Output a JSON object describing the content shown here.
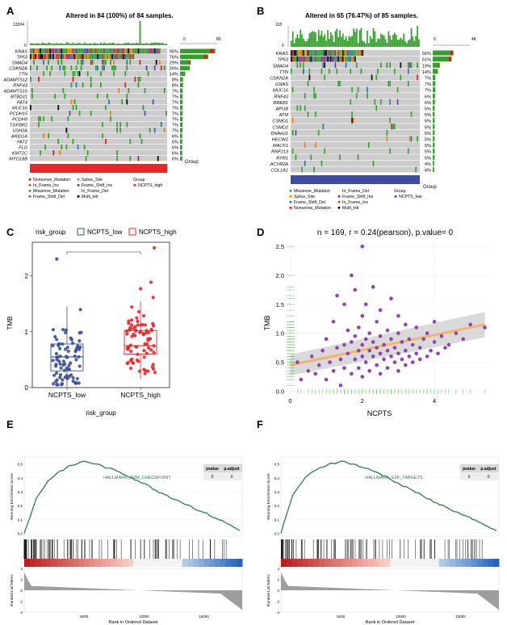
{
  "panels": {
    "A": {
      "letter": "A",
      "title": "Altered in 84 (100%) of 84 samples.",
      "top_axis_max": "13304",
      "top_axis_min": "0",
      "right_axis_min": "0",
      "right_axis_max": "80",
      "group_label": "Group",
      "genes": [
        "KRAS",
        "TP53",
        "SMAD4",
        "CDKN2A",
        "TTN",
        "ADAMTS12",
        "RNF43",
        "ADAMTS16",
        "BTBD11",
        "FAT4",
        "MUC16",
        "PCDH15",
        "PCDH9",
        "TGFBR2",
        "USH2A",
        "ARID1A",
        "FAT2",
        "FLG",
        "KMT2C",
        "MYO18B"
      ],
      "percents": [
        "95%",
        "76%",
        "29%",
        "26%",
        "14%",
        "8%",
        "8%",
        "7%",
        "7%",
        "7%",
        "7%",
        "7%",
        "7%",
        "7%",
        "7%",
        "6%",
        "6%",
        "6%",
        "6%",
        "6%"
      ],
      "legend": [
        "Nonsense_Mutation",
        "In_Frame_Ins",
        "Missense_Mutation",
        "Frame_Shift_Del",
        "Splice_Site",
        "Frame_Shift_Ins",
        "In_Frame_Del",
        "Multi_Hit"
      ],
      "legend_group_title": "Group",
      "legend_group_item": "NCPTS_high",
      "group_color": "#e8262a"
    },
    "B": {
      "letter": "B",
      "title": "Altered in 65 (76.47%) of 85 samples.",
      "top_axis_max": "118",
      "top_axis_min": "0",
      "right_axis_min": "0",
      "right_axis_max": "48",
      "group_label": "Group",
      "genes": [
        "KRAS",
        "TP53",
        "SMAD4",
        "TTN",
        "CDKN2A",
        "GNAS",
        "MUC16",
        "RNF43",
        "RREB1",
        "APOB",
        "ATM",
        "CSMD1",
        "CSMD2",
        "DNAH11",
        "HECW2",
        "MACF1",
        "RNF213",
        "RYR1",
        "ACVR2A",
        "COL1A1"
      ],
      "percents": [
        "56%",
        "51%",
        "19%",
        "14%",
        "7%",
        "7%",
        "7%",
        "6%",
        "6%",
        "5%",
        "5%",
        "5%",
        "5%",
        "5%",
        "5%",
        "5%",
        "5%",
        "5%",
        "4%",
        "4%"
      ],
      "legend": [
        "Missense_Mutation",
        "Splice_Site",
        "Frame_Shift_Del",
        "Nonsense_Mutation",
        "In_Frame_Del",
        "Frame_Shift_Ins",
        "In_Frame_Ins",
        "Multi_Hit"
      ],
      "legend_group_title": "Group",
      "legend_group_item": "NCPTS_low",
      "group_color": "#3f4ea3"
    },
    "C": {
      "letter": "C",
      "legend_title": "risk_group",
      "legend_items": [
        "NCPTS_low",
        "NCPTS_high"
      ],
      "sig": "***",
      "xlabel": "risk_group",
      "ylabel": "TMB",
      "yticks": [
        "0",
        "1",
        "2"
      ]
    },
    "D": {
      "letter": "D",
      "title": "n = 169, r = 0.24(pearson), p.value= 0",
      "xlabel": "NCPTS",
      "ylabel": "TMB",
      "xticks": [
        "0",
        "2",
        "4"
      ],
      "yticks": [
        "0.0",
        "0.5",
        "1.0",
        "1.5",
        "2.0",
        "2.5"
      ]
    },
    "E": {
      "letter": "E",
      "term": "HALLMARK_G2M_CHECKPOINT",
      "pvalue_header": "pvalue",
      "padj_header": "p.adjust",
      "pvalue": "0",
      "padj": "0",
      "ylabel_top": "Running Enrichment Score",
      "ylabel_bottom": "Ranked List Metric",
      "xlabel": "Rank in Ordered Dataset",
      "xticks": [
        "5000",
        "10000",
        "15000"
      ],
      "yticks_top": [
        "0.0",
        "0.1",
        "0.2",
        "0.3",
        "0.4",
        "0.5"
      ],
      "yticks_bottom": [
        "4",
        "2",
        "0",
        "-2",
        "-4"
      ]
    },
    "F": {
      "letter": "F",
      "term": "HALLMARK_E2F_TARGETS",
      "pvalue_header": "pvalue",
      "padj_header": "p.adjust",
      "pvalue": "0",
      "padj": "0",
      "ylabel_top": "Running Enrichment Score",
      "ylabel_bottom": "Ranked List Metric",
      "xlabel": "Rank in Ordered Dataset",
      "xticks": [
        "5000",
        "10000",
        "15000"
      ],
      "yticks_top": [
        "0.0",
        "0.1",
        "0.2",
        "0.3",
        "0.4",
        "0.5"
      ],
      "yticks_bottom": [
        "4",
        "2",
        "0",
        "-2",
        "-4"
      ]
    }
  },
  "colors": {
    "missense": "#33a02c",
    "nonsense": "#e31a1c",
    "frame_shift_del": "#1f78b4",
    "frame_shift_ins": "#6a3d9a",
    "in_frame_del": "#ffff99",
    "in_frame_ins": "#b15928",
    "splice_site": "#ff7f00",
    "multi_hit": "#000000",
    "empty_cell": "#cccccc",
    "low": "#3a4e9a",
    "high": "#e3262a",
    "scatter": "#8e44ad",
    "fit_line": "#f5b26b",
    "gsea_line": "#2e7d4f"
  },
  "chart_data": [
    {
      "type": "heatmap",
      "panel": "A",
      "title": "Altered in 84 (100%) of 84 samples.",
      "rows": [
        "KRAS",
        "TP53",
        "SMAD4",
        "CDKN2A",
        "TTN",
        "ADAMTS12",
        "RNF43",
        "ADAMTS16",
        "BTBD11",
        "FAT4",
        "MUC16",
        "PCDH15",
        "PCDH9",
        "TGFBR2",
        "USH2A",
        "ARID1A",
        "FAT2",
        "FLG",
        "KMT2C",
        "MYO18B"
      ],
      "frequency_percent": [
        95,
        76,
        29,
        26,
        14,
        8,
        8,
        7,
        7,
        7,
        7,
        7,
        7,
        7,
        7,
        6,
        6,
        6,
        6,
        6
      ],
      "n_samples": 84
    },
    {
      "type": "heatmap",
      "panel": "B",
      "title": "Altered in 65 (76.47%) of 85 samples.",
      "rows": [
        "KRAS",
        "TP53",
        "SMAD4",
        "TTN",
        "CDKN2A",
        "GNAS",
        "MUC16",
        "RNF43",
        "RREB1",
        "APOB",
        "ATM",
        "CSMD1",
        "CSMD2",
        "DNAH11",
        "HECW2",
        "MACF1",
        "RNF213",
        "RYR1",
        "ACVR2A",
        "COL1A1"
      ],
      "frequency_percent": [
        56,
        51,
        19,
        14,
        7,
        7,
        7,
        6,
        6,
        5,
        5,
        5,
        5,
        5,
        5,
        5,
        5,
        5,
        4,
        4
      ],
      "n_samples": 85
    },
    {
      "type": "box",
      "panel": "C",
      "categories": [
        "NCPTS_low",
        "NCPTS_high"
      ],
      "series": [
        {
          "name": "NCPTS_low",
          "q1": 0.3,
          "median": 0.55,
          "q3": 0.78,
          "whisker_low": 0.0,
          "whisker_high": 1.45,
          "max": 2.3
        },
        {
          "name": "NCPTS_high",
          "q1": 0.6,
          "median": 0.75,
          "q3": 1.02,
          "whisker_low": 0.15,
          "whisker_high": 1.55,
          "max": 2.5
        }
      ],
      "ylim": [
        0,
        2.6
      ],
      "xlabel": "risk_group",
      "ylabel": "TMB"
    },
    {
      "type": "scatter",
      "panel": "D",
      "title": "n = 169, r = 0.24(pearson), p.value= 0",
      "xlabel": "NCPTS",
      "ylabel": "TMB",
      "xlim": [
        -0.1,
        5.5
      ],
      "ylim": [
        -0.05,
        2.6
      ],
      "fit": {
        "x": [
          0,
          5.4
        ],
        "y": [
          0.45,
          1.15
        ]
      },
      "points": [
        [
          0.2,
          0.5
        ],
        [
          0.3,
          0.2
        ],
        [
          0.5,
          0.35
        ],
        [
          0.6,
          0.6
        ],
        [
          0.7,
          0.3
        ],
        [
          0.8,
          0.45
        ],
        [
          0.9,
          0.7
        ],
        [
          1.0,
          0.2
        ],
        [
          1.0,
          0.9
        ],
        [
          1.1,
          0.5
        ],
        [
          1.2,
          1.2
        ],
        [
          1.2,
          0.35
        ],
        [
          1.3,
          0.75
        ],
        [
          1.3,
          1.65
        ],
        [
          1.4,
          0.55
        ],
        [
          1.4,
          0.1
        ],
        [
          1.5,
          0.8
        ],
        [
          1.5,
          0.4
        ],
        [
          1.5,
          1.5
        ],
        [
          1.6,
          0.65
        ],
        [
          1.6,
          1.05
        ],
        [
          1.7,
          0.3
        ],
        [
          1.7,
          0.85
        ],
        [
          1.7,
          2.0
        ],
        [
          1.8,
          0.55
        ],
        [
          1.8,
          0.95
        ],
        [
          1.8,
          1.75
        ],
        [
          1.9,
          0.4
        ],
        [
          1.9,
          0.7
        ],
        [
          1.9,
          1.1
        ],
        [
          2.0,
          0.25
        ],
        [
          2.0,
          0.6
        ],
        [
          2.0,
          0.8
        ],
        [
          2.0,
          1.3
        ],
        [
          2.0,
          2.5
        ],
        [
          2.1,
          0.5
        ],
        [
          2.1,
          0.9
        ],
        [
          2.1,
          1.5
        ],
        [
          2.2,
          0.35
        ],
        [
          2.2,
          0.7
        ],
        [
          2.2,
          1.0
        ],
        [
          2.3,
          0.6
        ],
        [
          2.3,
          0.85
        ],
        [
          2.3,
          1.8
        ],
        [
          2.4,
          0.45
        ],
        [
          2.4,
          0.75
        ],
        [
          2.4,
          1.2
        ],
        [
          2.5,
          0.3
        ],
        [
          2.5,
          0.65
        ],
        [
          2.5,
          0.95
        ],
        [
          2.5,
          1.4
        ],
        [
          2.6,
          0.55
        ],
        [
          2.6,
          0.8
        ],
        [
          2.7,
          0.4
        ],
        [
          2.7,
          0.7
        ],
        [
          2.7,
          1.05
        ],
        [
          2.8,
          0.6
        ],
        [
          2.8,
          0.9
        ],
        [
          2.8,
          1.6
        ],
        [
          2.9,
          0.5
        ],
        [
          2.9,
          0.75
        ],
        [
          3.0,
          0.35
        ],
        [
          3.0,
          0.65
        ],
        [
          3.0,
          1.0
        ],
        [
          3.0,
          1.3
        ],
        [
          3.1,
          0.55
        ],
        [
          3.1,
          0.85
        ],
        [
          3.2,
          0.45
        ],
        [
          3.2,
          0.7
        ],
        [
          3.2,
          1.15
        ],
        [
          3.3,
          0.6
        ],
        [
          3.3,
          0.9
        ],
        [
          3.4,
          0.5
        ],
        [
          3.4,
          0.8
        ],
        [
          3.5,
          0.65
        ],
        [
          3.5,
          1.1
        ],
        [
          3.6,
          0.55
        ],
        [
          3.6,
          0.75
        ],
        [
          3.7,
          0.9
        ],
        [
          3.8,
          0.6
        ],
        [
          3.8,
          1.0
        ],
        [
          3.9,
          0.7
        ],
        [
          4.0,
          0.85
        ],
        [
          4.0,
          1.2
        ],
        [
          4.1,
          0.65
        ],
        [
          4.2,
          0.95
        ],
        [
          4.3,
          0.75
        ],
        [
          4.4,
          0.8
        ],
        [
          4.6,
          1.0
        ],
        [
          4.8,
          0.9
        ],
        [
          5.0,
          1.15
        ],
        [
          5.4,
          1.1
        ]
      ]
    },
    {
      "type": "line",
      "panel": "E",
      "title": "HALLMARK_G2M_CHECKPOINT",
      "xlabel": "Rank in Ordered Dataset",
      "ylabel": "Running Enrichment Score",
      "x": [
        0,
        1000,
        2000,
        3000,
        4000,
        5000,
        6000,
        7000,
        8000,
        9000,
        10000,
        11000,
        12000,
        13000,
        14000,
        15000,
        16000,
        17000,
        18000
      ],
      "y": [
        0.0,
        0.25,
        0.38,
        0.45,
        0.49,
        0.52,
        0.5,
        0.47,
        0.44,
        0.4,
        0.36,
        0.31,
        0.27,
        0.23,
        0.19,
        0.15,
        0.11,
        0.07,
        0.02
      ],
      "xlim": [
        0,
        18200
      ],
      "ylim": [
        -0.02,
        0.55
      ]
    },
    {
      "type": "line",
      "panel": "F",
      "title": "HALLMARK_E2F_TARGETS",
      "xlabel": "Rank in Ordered Dataset",
      "ylabel": "Running Enrichment Score",
      "x": [
        0,
        1000,
        2000,
        3000,
        4000,
        5000,
        6000,
        7000,
        8000,
        9000,
        10000,
        11000,
        12000,
        13000,
        14000,
        15000,
        16000,
        17000,
        18000
      ],
      "y": [
        0.0,
        0.28,
        0.4,
        0.46,
        0.5,
        0.52,
        0.5,
        0.47,
        0.44,
        0.4,
        0.35,
        0.31,
        0.26,
        0.22,
        0.18,
        0.14,
        0.1,
        0.06,
        0.02
      ],
      "xlim": [
        0,
        18200
      ],
      "ylim": [
        -0.02,
        0.55
      ]
    }
  ]
}
